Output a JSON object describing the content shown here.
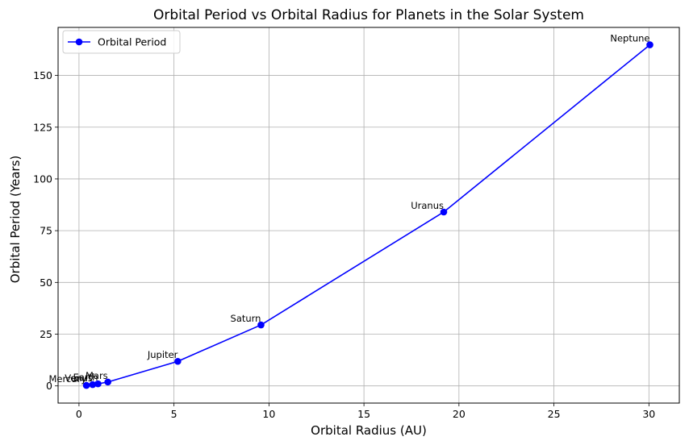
{
  "chart_data": {
    "type": "line",
    "title": "Orbital Period vs Orbital Radius for Planets in the Solar System",
    "xlabel": "Orbital Radius (AU)",
    "ylabel": "Orbital Period (Years)",
    "xlim": [
      -1.1,
      31.6
    ],
    "ylim": [
      -8.3,
      173.2
    ],
    "xticks": [
      0,
      5,
      10,
      15,
      20,
      25,
      30
    ],
    "yticks": [
      0,
      25,
      50,
      75,
      100,
      125,
      150
    ],
    "grid": true,
    "legend": {
      "position": "top-left"
    },
    "series": [
      {
        "name": "Orbital Period",
        "color": "#0000ff",
        "marker": "circle",
        "labels": [
          "Mercury",
          "Venus",
          "Earth",
          "Mars",
          "Jupiter",
          "Saturn",
          "Uranus",
          "Neptune"
        ],
        "x": [
          0.39,
          0.72,
          1.0,
          1.52,
          5.2,
          9.58,
          19.2,
          30.05
        ],
        "y": [
          0.24,
          0.62,
          1.0,
          1.88,
          11.86,
          29.46,
          84.01,
          164.8
        ]
      }
    ]
  }
}
